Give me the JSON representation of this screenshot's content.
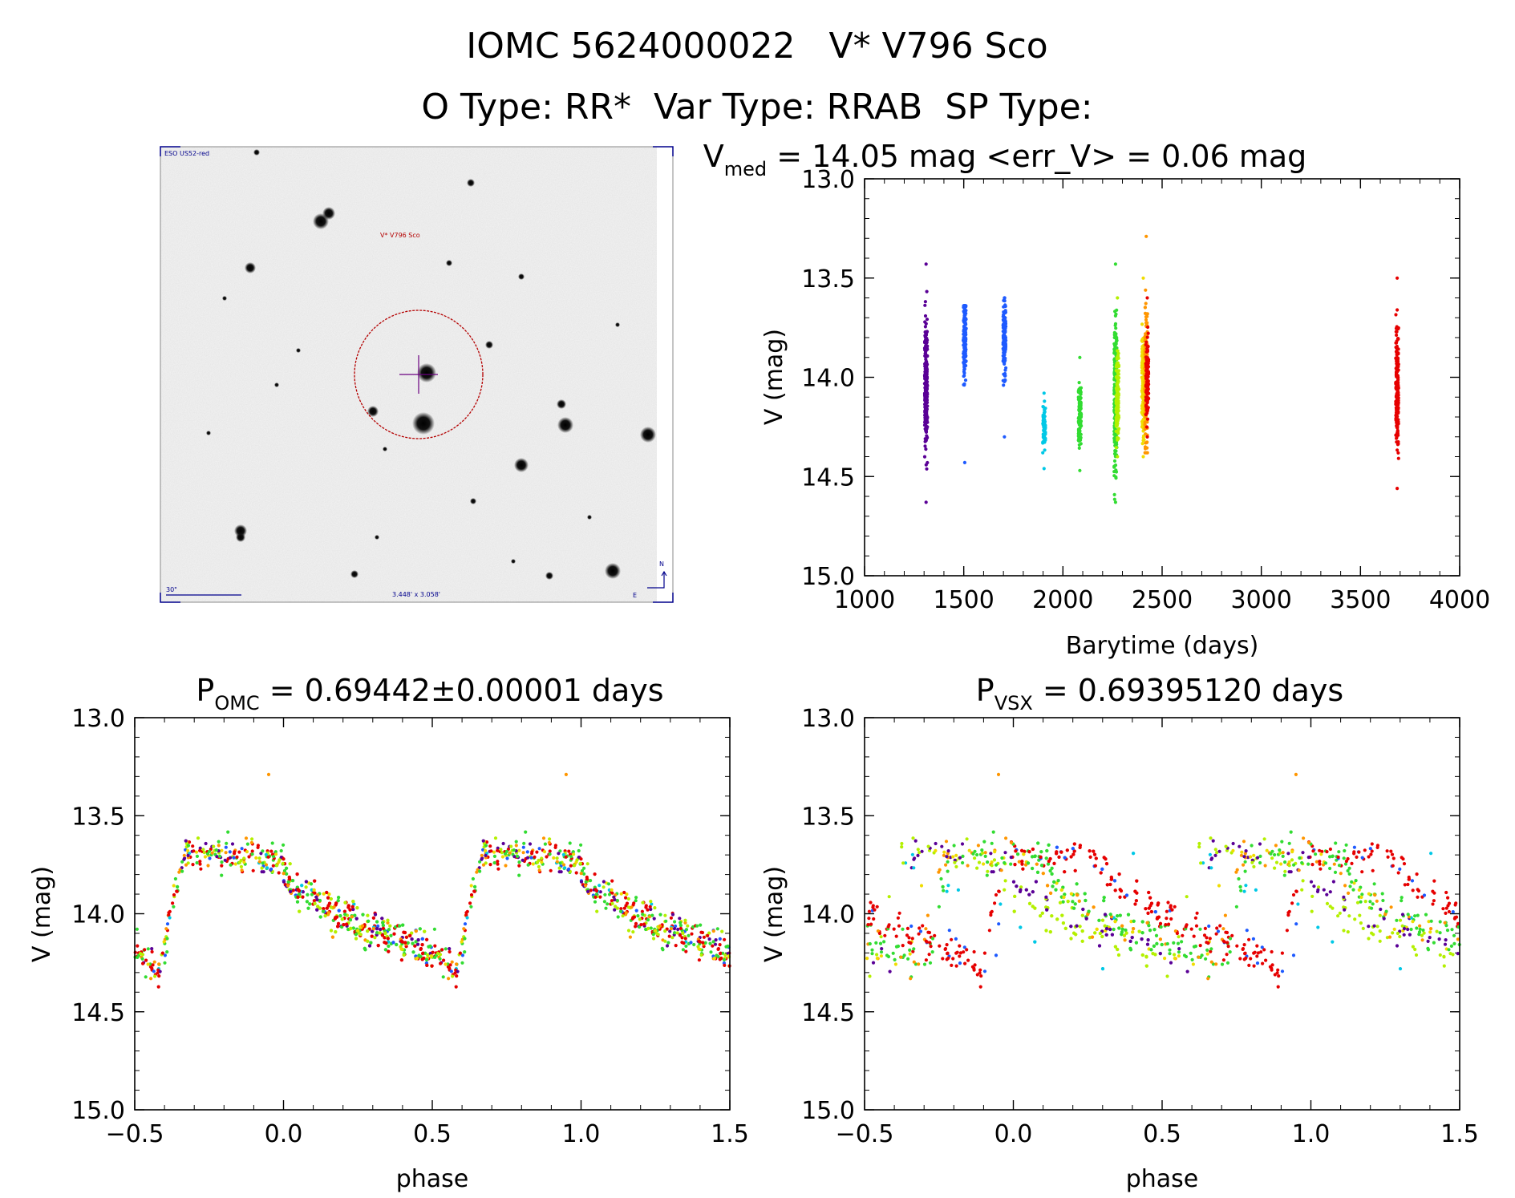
{
  "header": {
    "title": "IOMC 5624000022   V* V796 Sco",
    "types": "O Type: RR*  Var Type: RRAB  SP Type:"
  },
  "finder": {
    "survey": "ESO US52-red",
    "target_label": "V* V796 Sco",
    "scale_label": "30\"",
    "fov_label": "3.448' x 3.058'",
    "north": "N",
    "east": "E"
  },
  "colors": {
    "purple": "#5a0096",
    "blue": "#1e5aff",
    "cyan": "#00c8e6",
    "green": "#32dc32",
    "lime": "#b4f000",
    "yellow": "#f0dc00",
    "orange": "#ff9600",
    "red": "#e60000",
    "finder_red": "#b40000",
    "finder_blue": "#00008c"
  },
  "chart_data": [
    {
      "type": "scatter",
      "name": "timeseries",
      "title_main": "V",
      "title_sub": "med",
      "title_rest": " = 14.05 mag <err_V> = 0.06 mag",
      "xlabel": "Barytime (days)",
      "ylabel": "V (mag)",
      "xlim": [
        1000,
        4000
      ],
      "ylim": [
        15.0,
        13.0
      ],
      "xticks": [
        1000,
        1500,
        2000,
        2500,
        3000,
        3500,
        4000
      ],
      "yticks": [
        13.0,
        13.5,
        14.0,
        14.5,
        15.0
      ],
      "groups": [
        {
          "color": "purple",
          "x": 1310,
          "range": [
            13.43,
            14.63
          ],
          "center": 14.03
        },
        {
          "color": "blue",
          "x": 1505,
          "range": [
            13.64,
            14.43
          ],
          "center": 13.8
        },
        {
          "color": "blue",
          "x": 1705,
          "range": [
            13.6,
            14.3
          ],
          "center": 13.8
        },
        {
          "color": "cyan",
          "x": 1905,
          "range": [
            14.08,
            14.46
          ],
          "center": 14.23
        },
        {
          "color": "green",
          "x": 2085,
          "range": [
            13.9,
            14.47
          ],
          "center": 14.2
        },
        {
          "color": "green",
          "x": 2265,
          "range": [
            13.43,
            14.63
          ],
          "center": 14.1
        },
        {
          "color": "lime",
          "x": 2275,
          "range": [
            13.6,
            14.4
          ],
          "center": 14.1
        },
        {
          "color": "yellow",
          "x": 2405,
          "range": [
            13.5,
            14.4
          ],
          "center": 14.05
        },
        {
          "color": "orange",
          "x": 2420,
          "range": [
            13.29,
            14.38
          ],
          "center": 14.0
        },
        {
          "color": "red",
          "x": 2425,
          "range": [
            13.6,
            14.3
          ],
          "center": 14.0
        },
        {
          "color": "red",
          "x": 3685,
          "range": [
            13.5,
            14.56
          ],
          "center": 14.05
        }
      ]
    },
    {
      "type": "scatter",
      "name": "phase_omc",
      "title_main": "P",
      "title_sub": "OMC",
      "title_rest": " = 0.69442±0.00001 days",
      "xlabel": "phase",
      "ylabel": "V (mag)",
      "xlim": [
        -0.5,
        1.5
      ],
      "ylim": [
        15.0,
        13.0
      ],
      "xticks": [
        -0.5,
        0.0,
        0.5,
        1.0,
        1.5
      ],
      "yticks": [
        13.0,
        13.5,
        14.0,
        14.5,
        15.0
      ],
      "period_days": 0.69442
    },
    {
      "type": "scatter",
      "name": "phase_vsx",
      "title_main": "P",
      "title_sub": "VSX",
      "title_rest": " = 0.69395120 days",
      "xlabel": "phase",
      "ylabel": "V (mag)",
      "xlim": [
        -0.5,
        1.5
      ],
      "ylim": [
        15.0,
        13.0
      ],
      "xticks": [
        -0.5,
        0.0,
        0.5,
        1.0,
        1.5
      ],
      "yticks": [
        13.0,
        13.5,
        14.0,
        14.5,
        15.0
      ],
      "period_days": 0.6939512
    }
  ]
}
